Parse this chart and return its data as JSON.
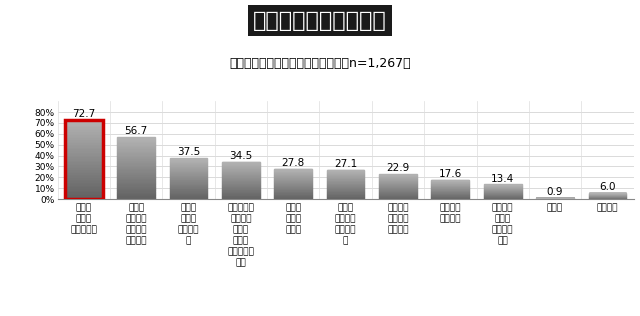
{
  "title": "テレワークのメリット",
  "subtitle": "回答者：テレワークをしている人（n=1,267）",
  "categories": [
    "通勤時\nのスト\nレスがない",
    "通勤時\n間を他の\nことに充\nてられる",
    "時間配\n分が自\n由にでき\nる",
    "リラックス\nしながら\n働ける\n（スト\nレスが少な\nい）",
    "余暇の\n時間が\n増える",
    "職場の\n雑用をし\nなくて良\nい",
    "家族と過\nごす時間\nが増える",
    "仕事に集\n中できる",
    "家事・育\n児の時\n間を増や\nせる",
    "その他",
    "特にない"
  ],
  "values": [
    72.7,
    56.7,
    37.5,
    34.5,
    27.8,
    27.1,
    22.9,
    17.6,
    13.4,
    0.9,
    6.0
  ],
  "bar_color_top": "#aaaaaa",
  "bar_color_bottom": "#555555",
  "first_bar_outline_color": "#cc0000",
  "background_color": "#ffffff",
  "ylim": [
    0,
    90
  ],
  "yticks": [
    0,
    10,
    20,
    30,
    40,
    50,
    60,
    70,
    80
  ],
  "title_bg_color": "#1a1a1a",
  "title_text_color": "#ffffff",
  "title_fontsize": 16,
  "subtitle_fontsize": 9,
  "value_fontsize": 7.5,
  "tick_fontsize": 6.5,
  "bar_width": 0.72
}
